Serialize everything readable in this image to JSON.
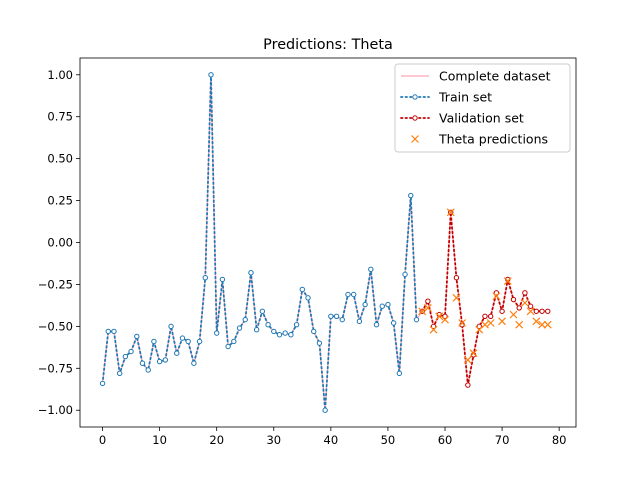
{
  "chart_data": {
    "type": "line",
    "title": "Predictions: Theta",
    "xlabel": "",
    "ylabel": "",
    "xlim": [
      -3.95,
      82.95
    ],
    "ylim": [
      -1.1,
      1.1
    ],
    "xticks": [
      0,
      10,
      20,
      30,
      40,
      50,
      60,
      70,
      80
    ],
    "yticks": [
      -1.0,
      -0.75,
      -0.5,
      -0.25,
      0.0,
      0.25,
      0.5,
      0.75,
      1.0
    ],
    "xtick_labels": [
      "0",
      "10",
      "20",
      "30",
      "40",
      "50",
      "60",
      "70",
      "80"
    ],
    "ytick_labels": [
      "−1.00",
      "−0.75",
      "−0.50",
      "−0.25",
      "0.00",
      "0.25",
      "0.50",
      "0.75",
      "1.00"
    ],
    "grid": false,
    "legend_position": "top-right",
    "series": [
      {
        "name": "Complete dataset",
        "style": "solid-line",
        "color": "#ffb6c1",
        "x": [
          0,
          1,
          2,
          3,
          4,
          5,
          6,
          7,
          8,
          9,
          10,
          11,
          12,
          13,
          14,
          15,
          16,
          17,
          18,
          19,
          20,
          21,
          22,
          23,
          24,
          25,
          26,
          27,
          28,
          29,
          30,
          31,
          32,
          33,
          34,
          35,
          36,
          37,
          38,
          39,
          40,
          41,
          42,
          43,
          44,
          45,
          46,
          47,
          48,
          49,
          50,
          51,
          52,
          53,
          54,
          55,
          56,
          57,
          58,
          59,
          60,
          61,
          62,
          63,
          64,
          65,
          66,
          67,
          68,
          69,
          70,
          71,
          72,
          73,
          74,
          75,
          76,
          77,
          78
        ],
        "y": [
          -0.84,
          -0.53,
          -0.53,
          -0.78,
          -0.68,
          -0.65,
          -0.56,
          -0.72,
          -0.76,
          -0.59,
          -0.71,
          -0.7,
          -0.5,
          -0.66,
          -0.57,
          -0.59,
          -0.72,
          -0.59,
          -0.21,
          1.0,
          -0.54,
          -0.22,
          -0.62,
          -0.59,
          -0.51,
          -0.46,
          -0.18,
          -0.52,
          -0.41,
          -0.49,
          -0.53,
          -0.55,
          -0.54,
          -0.55,
          -0.49,
          -0.28,
          -0.33,
          -0.53,
          -0.6,
          -1.0,
          -0.44,
          -0.44,
          -0.46,
          -0.31,
          -0.31,
          -0.47,
          -0.37,
          -0.16,
          -0.49,
          -0.38,
          -0.37,
          -0.48,
          -0.78,
          -0.19,
          0.28,
          -0.46,
          -0.41,
          -0.35,
          -0.5,
          -0.43,
          -0.44,
          0.18,
          -0.21,
          -0.49,
          -0.85,
          -0.67,
          -0.5,
          -0.44,
          -0.44,
          -0.3,
          -0.41,
          -0.22,
          -0.34,
          -0.39,
          -0.3,
          -0.38,
          -0.41,
          -0.41,
          -0.41
        ]
      },
      {
        "name": "Train set",
        "style": "dotted-line-circles",
        "color": "#1f77b4",
        "x": [
          0,
          1,
          2,
          3,
          4,
          5,
          6,
          7,
          8,
          9,
          10,
          11,
          12,
          13,
          14,
          15,
          16,
          17,
          18,
          19,
          20,
          21,
          22,
          23,
          24,
          25,
          26,
          27,
          28,
          29,
          30,
          31,
          32,
          33,
          34,
          35,
          36,
          37,
          38,
          39,
          40,
          41,
          42,
          43,
          44,
          45,
          46,
          47,
          48,
          49,
          50,
          51,
          52,
          53,
          54,
          55
        ],
        "y": [
          -0.84,
          -0.53,
          -0.53,
          -0.78,
          -0.68,
          -0.65,
          -0.56,
          -0.72,
          -0.76,
          -0.59,
          -0.71,
          -0.7,
          -0.5,
          -0.66,
          -0.57,
          -0.59,
          -0.72,
          -0.59,
          -0.21,
          1.0,
          -0.54,
          -0.22,
          -0.62,
          -0.59,
          -0.51,
          -0.46,
          -0.18,
          -0.52,
          -0.41,
          -0.49,
          -0.53,
          -0.55,
          -0.54,
          -0.55,
          -0.49,
          -0.28,
          -0.33,
          -0.53,
          -0.6,
          -1.0,
          -0.44,
          -0.44,
          -0.46,
          -0.31,
          -0.31,
          -0.47,
          -0.37,
          -0.16,
          -0.49,
          -0.38,
          -0.37,
          -0.48,
          -0.78,
          -0.19,
          0.28,
          -0.46
        ]
      },
      {
        "name": "Validation set",
        "style": "dotted-line-circles",
        "color": "#c00000",
        "x": [
          56,
          57,
          58,
          59,
          60,
          61,
          62,
          63,
          64,
          65,
          66,
          67,
          68,
          69,
          70,
          71,
          72,
          73,
          74,
          75,
          76,
          77,
          78
        ],
        "y": [
          -0.41,
          -0.35,
          -0.5,
          -0.43,
          -0.44,
          0.18,
          -0.21,
          -0.49,
          -0.85,
          -0.67,
          -0.5,
          -0.44,
          -0.44,
          -0.3,
          -0.41,
          -0.22,
          -0.34,
          -0.39,
          -0.3,
          -0.38,
          -0.41,
          -0.41,
          -0.41
        ]
      },
      {
        "name": "Theta predictions",
        "style": "x-markers",
        "color": "#ff7f0e",
        "x": [
          56,
          57,
          58,
          59,
          60,
          61,
          62,
          63,
          64,
          65,
          66,
          67,
          68,
          69,
          70,
          71,
          72,
          73,
          74,
          75,
          76,
          77,
          78
        ],
        "y": [
          -0.41,
          -0.39,
          -0.52,
          -0.44,
          -0.46,
          0.18,
          -0.33,
          -0.48,
          -0.7,
          -0.66,
          -0.52,
          -0.49,
          -0.48,
          -0.32,
          -0.47,
          -0.23,
          -0.43,
          -0.49,
          -0.36,
          -0.41,
          -0.47,
          -0.49,
          -0.49
        ]
      }
    ]
  }
}
